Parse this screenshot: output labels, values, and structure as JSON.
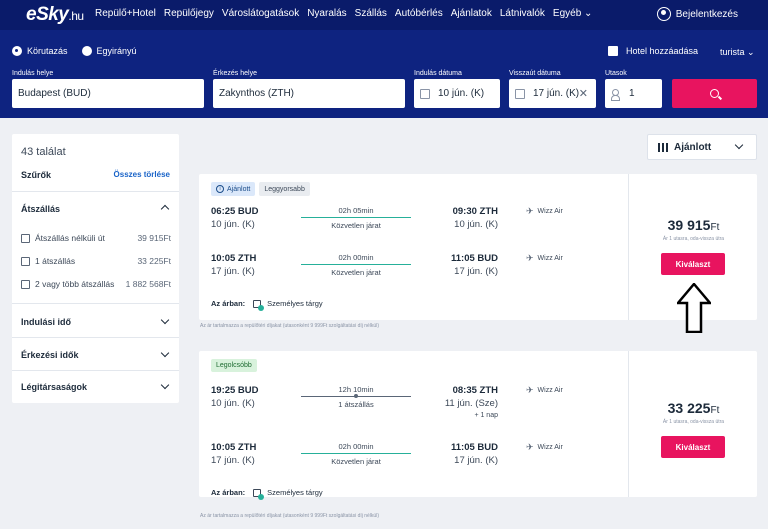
{
  "header": {
    "logo_main": "eSky",
    "logo_tld": ".hu",
    "nav": [
      "Repülő+Hotel",
      "Repülőjegy",
      "Városlátogatások",
      "Nyaralás",
      "Szállás",
      "Autóbérlés",
      "Ajánlatok",
      "Látnivalók",
      "Egyéb"
    ],
    "login": "Bejelentkezés"
  },
  "search": {
    "trip_types": [
      "Körutazás",
      "Egyirányú"
    ],
    "hotel_label": "Hotel hozzáadása",
    "cabin": "turista",
    "from_label": "Indulás helye",
    "from_value": "Budapest (BUD)",
    "to_label": "Érkezés helye",
    "to_value": "Zakynthos (ZTH)",
    "dep_label": "Indulás dátuma",
    "dep_value": "10 jún. (K)",
    "ret_label": "Visszaút dátuma",
    "ret_value": "17 jún. (K)",
    "pax_label": "Utasok",
    "pax_value": "1"
  },
  "sidebar": {
    "count": "43 találat",
    "filters_title": "Szűrők",
    "clear_all": "Összes törlése",
    "stops_title": "Átszállás",
    "stop_options": [
      {
        "label": "Átszállás nélküli út",
        "price": "39 915Ft"
      },
      {
        "label": "1 átszállás",
        "price": "33 225Ft"
      },
      {
        "label": "2 vagy több átszállás",
        "price": "1 882 568Ft"
      }
    ],
    "sections": [
      "Indulási idő",
      "Érkezési idők",
      "Légitársaságok"
    ]
  },
  "sort": {
    "label": "Ajánlott"
  },
  "results": [
    {
      "badges": [
        "Ajánlott",
        "Leggyorsabb"
      ],
      "segments": [
        {
          "dep_time": "06:25 BUD",
          "dep_date": "10 jún. (K)",
          "duration": "02h 05min",
          "stops": "Közvetlen járat",
          "arr_time": "09:30 ZTH",
          "arr_date": "10 jún. (K)",
          "airline": "Wizz Air"
        },
        {
          "dep_time": "10:05 ZTH",
          "dep_date": "17 jún. (K)",
          "duration": "02h 00min",
          "stops": "Közvetlen járat",
          "arr_time": "11:05 BUD",
          "arr_date": "17 jún. (K)",
          "airline": "Wizz Air"
        }
      ],
      "included_label": "Az árban:",
      "included_item": "Személyes tárgy",
      "price": "39 915",
      "currency": "Ft",
      "price_note": "Ár 1 utasra, oda-vissza útra",
      "select": "Kiválaszt",
      "disclaimer": "Az ár tartalmazza a repülőtéri díjakat (utasonként 9 999Ft szolgáltatási díj nélkül)"
    },
    {
      "badges": [
        "Legolcsóbb"
      ],
      "segments": [
        {
          "dep_time": "19:25 BUD",
          "dep_date": "10 jún. (K)",
          "duration": "12h 10min",
          "stops": "1 átszállás",
          "arr_time": "08:35 ZTH",
          "arr_date": "11 jún. (Sze)",
          "plus": "+ 1 nap",
          "airline": "Wizz Air"
        },
        {
          "dep_time": "10:05 ZTH",
          "dep_date": "17 jún. (K)",
          "duration": "02h 00min",
          "stops": "Közvetlen járat",
          "arr_time": "11:05 BUD",
          "arr_date": "17 jún. (K)",
          "airline": "Wizz Air"
        }
      ],
      "included_label": "Az árban:",
      "included_item": "Személyes tárgy",
      "price": "33 225",
      "currency": "Ft",
      "price_note": "Ár 1 utasra, oda-vissza útra",
      "select": "Kiválaszt",
      "disclaimer": "Az ár tartalmazza a repülőtéri díjakat (utasonként 9 999Ft szolgáltatási díj nélkül)"
    }
  ],
  "colors": {
    "header": "#0a1b6a",
    "accent": "#e8145f",
    "link": "#1a64c8"
  }
}
